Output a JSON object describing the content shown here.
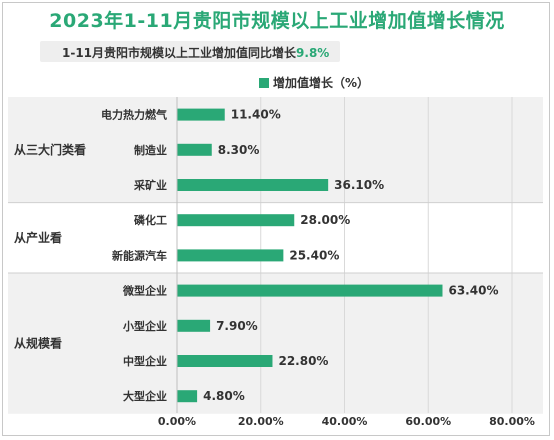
{
  "title": "2023年1-11月贵阳市规模以上工业增加值增长情况",
  "subtitle_prefix": "1-11月贵阳市规模以上工业增加值同比增长",
  "subtitle_value": "9.8%",
  "colors": {
    "bar": "#2aa876",
    "title": "#2aa876",
    "band": "#f1f1f1",
    "grid": "#d9d9d9"
  },
  "chart_data": {
    "type": "bar",
    "orientation": "horizontal",
    "legend": "增加值增长（%）",
    "legend_position": "top",
    "xlim": [
      0,
      80
    ],
    "xticks": [
      "0.00%",
      "20.00%",
      "40.00%",
      "60.00%",
      "80.00%"
    ],
    "grid": true,
    "groups": [
      {
        "name": "从三大门类看",
        "categories": [
          "电力热力燃气",
          "制造业",
          "采矿业"
        ],
        "values": [
          11.4,
          8.3,
          36.1
        ],
        "labels": [
          "11.40%",
          "8.30%",
          "36.10%"
        ]
      },
      {
        "name": "从产业看",
        "categories": [
          "磷化工",
          "新能源汽车"
        ],
        "values": [
          28.0,
          25.4
        ],
        "labels": [
          "28.00%",
          "25.40%"
        ]
      },
      {
        "name": "从规模看",
        "categories": [
          "微型企业",
          "小型企业",
          "中型企业",
          "大型企业"
        ],
        "values": [
          63.4,
          7.9,
          22.8,
          4.8
        ],
        "labels": [
          "63.40%",
          "7.90%",
          "22.80%",
          "4.80%"
        ]
      }
    ]
  }
}
